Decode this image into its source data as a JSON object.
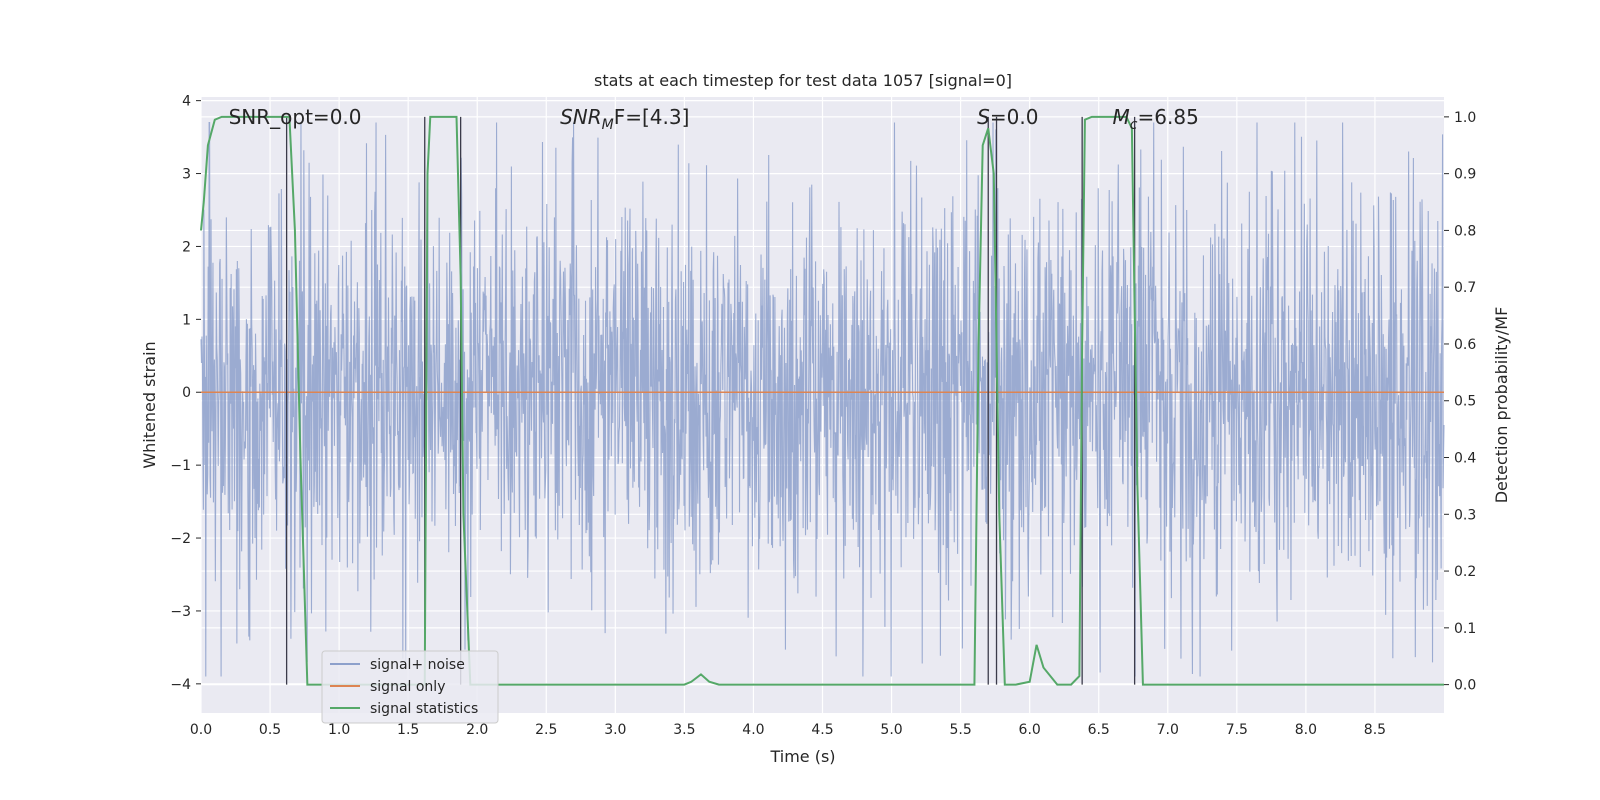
{
  "chart_data": {
    "type": "line",
    "title": "stats at each timestep for test data 1057 [signal=0]",
    "xlabel": "Time (s)",
    "ylabel": "Whitened strain",
    "y2label": "Detection probability/MF",
    "xlim": [
      0.0,
      9.0
    ],
    "ylim": [
      -4.4,
      4.05
    ],
    "y2lim": [
      -0.05,
      1.035
    ],
    "xticks": [
      "0.0",
      "0.5",
      "1.0",
      "1.5",
      "2.0",
      "2.5",
      "3.0",
      "3.5",
      "4.0",
      "4.5",
      "5.0",
      "5.5",
      "6.0",
      "6.5",
      "7.0",
      "7.5",
      "8.0",
      "8.5"
    ],
    "yticks": [
      "−4",
      "−3",
      "−2",
      "−1",
      "0",
      "1",
      "2",
      "3",
      "4"
    ],
    "y2ticks": [
      "0.0",
      "0.1",
      "0.2",
      "0.3",
      "0.4",
      "0.5",
      "0.6",
      "0.7",
      "0.8",
      "0.9",
      "1.0"
    ],
    "grid": true,
    "legend_position": "lower-left",
    "annotations": [
      {
        "text": "SNR_opt=0.0",
        "x": 0.2
      },
      {
        "math": "SNR",
        "sub": "M",
        "rest": "F=[4.3]",
        "x": 2.6
      },
      {
        "math": "S",
        "sub": "",
        "rest": "=0.0",
        "x": 5.62
      },
      {
        "math": "M",
        "sub": "c",
        "rest": "=6.85",
        "x": 6.6
      }
    ],
    "colors": {
      "noise": "#8da0cb",
      "signal": "#dd8452",
      "stats": "#55a868",
      "vlines": "#3b3b4a",
      "background": "#eaeaf2"
    },
    "series": [
      {
        "name": "signal+ noise",
        "axis": "left",
        "kind": "noise",
        "band_amplitude": 1.35,
        "approx_range": [
          -3.9,
          3.7
        ]
      },
      {
        "name": "signal only",
        "axis": "left",
        "x": [
          0.0,
          9.0
        ],
        "y": [
          0.0,
          0.0
        ]
      },
      {
        "name": "signal statistics",
        "axis": "right",
        "x": [
          0.0,
          0.02,
          0.05,
          0.1,
          0.15,
          0.3,
          0.45,
          0.55,
          0.6,
          0.64,
          0.68,
          0.72,
          0.77,
          0.8,
          1.0,
          1.2,
          1.4,
          1.5,
          1.6,
          1.62,
          1.63,
          1.64,
          1.66,
          1.7,
          1.75,
          1.8,
          1.85,
          1.88,
          1.9,
          1.95,
          2.0,
          2.5,
          3.0,
          3.5,
          3.55,
          3.62,
          3.68,
          3.75,
          4.0,
          4.5,
          5.0,
          5.5,
          5.6,
          5.63,
          5.66,
          5.7,
          5.74,
          5.78,
          5.82,
          5.86,
          5.9,
          6.0,
          6.05,
          6.1,
          6.2,
          6.3,
          6.36,
          6.38,
          6.4,
          6.45,
          6.5,
          6.6,
          6.7,
          6.74,
          6.78,
          6.82,
          6.86,
          7.0,
          7.5,
          8.0,
          8.5,
          9.0
        ],
        "y": [
          0.8,
          0.85,
          0.95,
          0.995,
          1.0,
          1.0,
          1.0,
          1.0,
          1.0,
          1.0,
          0.8,
          0.4,
          0.0,
          0.0,
          0.0,
          0.0,
          0.0,
          0.0,
          0.0,
          0.0,
          0.45,
          0.9,
          1.0,
          1.0,
          1.0,
          1.0,
          1.0,
          0.72,
          0.3,
          0.0,
          0.0,
          0.0,
          0.0,
          0.0,
          0.005,
          0.018,
          0.005,
          0.0,
          0.0,
          0.0,
          0.0,
          0.0,
          0.0,
          0.6,
          0.95,
          0.98,
          0.9,
          0.3,
          0.0,
          0.0,
          0.0,
          0.005,
          0.07,
          0.03,
          0.0,
          0.0,
          0.015,
          0.6,
          0.995,
          1.0,
          1.0,
          1.0,
          1.0,
          0.98,
          0.35,
          0.0,
          0.0,
          0.0,
          0.0,
          0.0,
          0.0,
          0.0
        ]
      }
    ],
    "vertical_lines": {
      "x": [
        0.62,
        1.62,
        1.88,
        5.7,
        5.76,
        6.38,
        6.76
      ],
      "y2_range": [
        0.0,
        1.0
      ]
    }
  }
}
